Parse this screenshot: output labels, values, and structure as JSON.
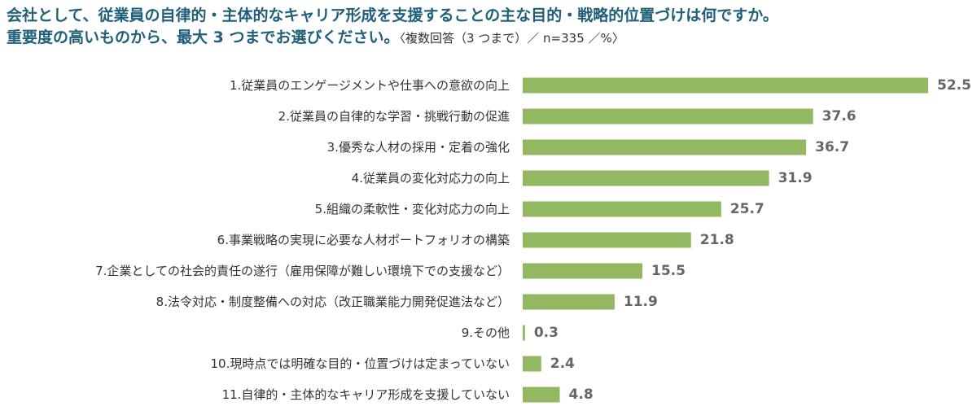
{
  "title": {
    "line1": "会社として、従業員の自律的・主体的なキャリア形成を支援することの主な目的・戦略的位置づけは何ですか。",
    "line2": "重要度の高いものから、最大 3 つまでお選びください。",
    "note": "〈複数回答（3 つまで）／ n=335 ／%〉"
  },
  "colors": {
    "bar": "#93b862",
    "title": "#1f5f7a"
  },
  "chart_data": {
    "type": "bar",
    "orientation": "horizontal",
    "categories": [
      "1.従業員のエンゲージメントや仕事への意欲の向上",
      "2.従業員の自律的な学習・挑戦行動の促進",
      "3.優秀な人材の採用・定着の強化",
      "4.従業員の変化対応力の向上",
      "5.組織の柔軟性・変化対応力の向上",
      "6.事業戦略の実現に必要な人材ポートフォリオの構築",
      "7.企業としての社会的責任の遂行（雇用保障が難しい環境下での支援など）",
      "8.法令対応・制度整備への対応（改正職業能力開発促進法など）",
      "9.その他",
      "10.現時点では明確な目的・位置づけは定まっていない",
      "11.自律的・主体的なキャリア形成を支援していない"
    ],
    "values": [
      52.5,
      37.6,
      36.7,
      31.9,
      25.7,
      21.8,
      15.5,
      11.9,
      0.3,
      2.4,
      4.8
    ],
    "value_labels": [
      "52.5",
      "37.6",
      "36.7",
      "31.9",
      "25.7",
      "21.8",
      "15.5",
      "11.9",
      "0.3",
      "2.4",
      "4.8"
    ],
    "xlim": [
      0,
      52.5
    ],
    "grid": false,
    "legend": "none"
  }
}
